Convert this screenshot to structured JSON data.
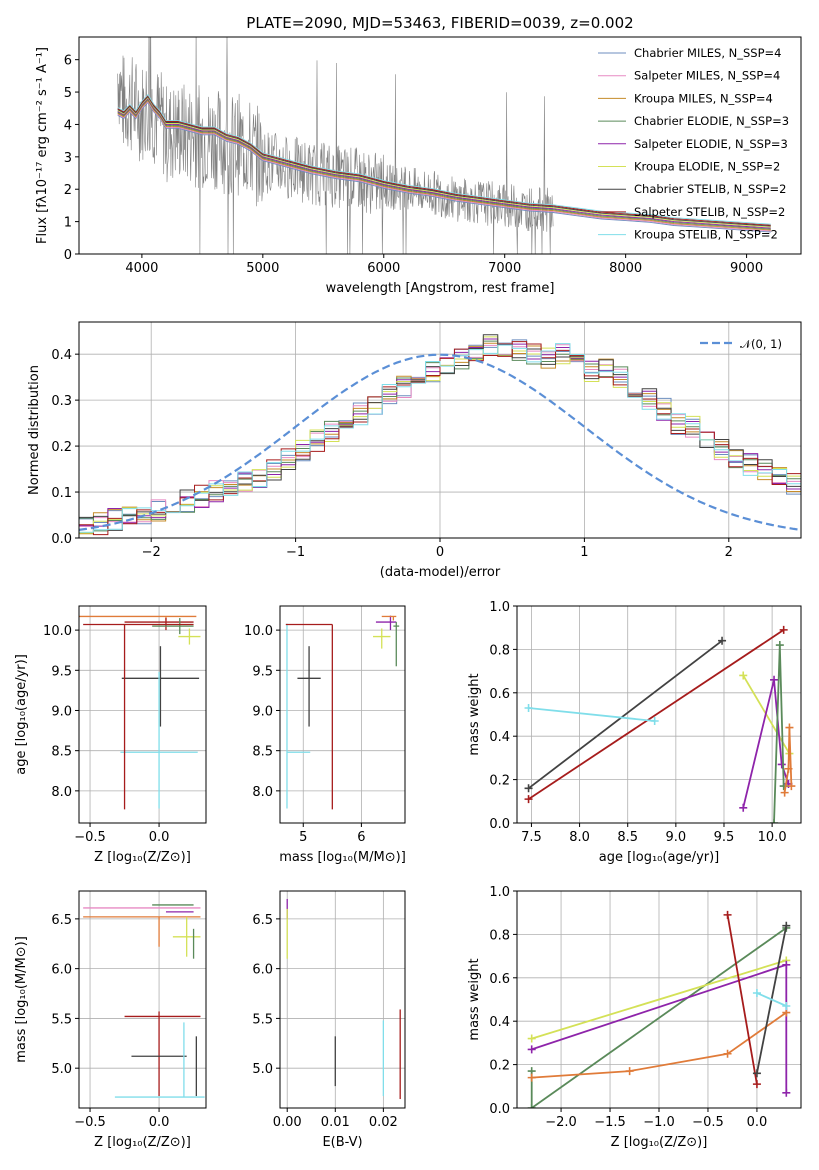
{
  "chart_data": [
    {
      "id": "spectrum",
      "type": "line",
      "title": "PLATE=2090, MJD=53463, FIBERID=0039, z=0.002",
      "xlabel": "wavelength [Angstrom, rest frame]",
      "ylabel": "Flux [fλ10⁻¹⁷ erg cm⁻² s⁻¹ A⁻¹]",
      "xlim": [
        3480,
        9450
      ],
      "ylim": [
        0,
        6.7
      ],
      "xticks": [
        4000,
        5000,
        6000,
        7000,
        8000,
        9000
      ],
      "yticks": [
        0,
        1,
        2,
        3,
        4,
        5,
        6
      ],
      "grid": false,
      "legend_position": "top-right",
      "data_envelope": {
        "x": [
          3800,
          3850,
          3900,
          3950,
          4000,
          4050,
          4100,
          4150,
          4200,
          4300,
          4400,
          4500,
          4600,
          4700,
          4800,
          4900,
          5000,
          5200,
          5400,
          5600,
          5800,
          6000,
          6200,
          6400,
          6600,
          6800,
          7000,
          7200,
          7400
        ],
        "y": [
          5.6,
          4.6,
          4.7,
          4.5,
          4.4,
          4.6,
          4.3,
          4.2,
          3.7,
          3.8,
          3.7,
          3.6,
          3.6,
          3.4,
          3.4,
          3.2,
          2.9,
          2.7,
          2.5,
          2.4,
          2.3,
          2.1,
          2.0,
          1.9,
          1.7,
          1.6,
          1.5,
          1.4,
          1.35
        ]
      },
      "series": [
        {
          "name": "Chabrier MILES, N_SSP=4",
          "color": "#6c8ebf"
        },
        {
          "name": "Salpeter MILES, N_SSP=4",
          "color": "#e78ac3"
        },
        {
          "name": "Kroupa MILES, N_SSP=4",
          "color": "#c58b2a"
        },
        {
          "name": "Chabrier ELODIE, N_SSP=3",
          "color": "#5a8a5a"
        },
        {
          "name": "Salpeter ELODIE, N_SSP=3",
          "color": "#8e24aa"
        },
        {
          "name": "Kroupa ELODIE, N_SSP=2",
          "color": "#d4e157"
        },
        {
          "name": "Chabrier STELIB, N_SSP=2",
          "color": "#424242"
        },
        {
          "name": "Salpeter STELIB, N_SSP=2",
          "color": "#a61c1c"
        },
        {
          "name": "Kroupa STELIB, N_SSP=2",
          "color": "#80deea"
        }
      ],
      "model_x": [
        3800,
        3850,
        3900,
        3950,
        4000,
        4050,
        4100,
        4150,
        4200,
        4300,
        4400,
        4500,
        4600,
        4700,
        4800,
        4900,
        5000,
        5200,
        5400,
        5600,
        5800,
        6000,
        6200,
        6400,
        6600,
        6800,
        7000,
        7200,
        7400,
        7600,
        7800,
        8000,
        8200,
        8400,
        8600,
        8800,
        9000,
        9200
      ],
      "model_y": [
        4.4,
        4.3,
        4.5,
        4.3,
        4.6,
        4.8,
        4.5,
        4.3,
        4.0,
        4.0,
        3.9,
        3.8,
        3.8,
        3.6,
        3.5,
        3.3,
        3.0,
        2.8,
        2.6,
        2.45,
        2.35,
        2.15,
        2.0,
        1.9,
        1.75,
        1.65,
        1.55,
        1.45,
        1.4,
        1.3,
        1.2,
        1.15,
        1.1,
        1.0,
        0.95,
        0.9,
        0.85,
        0.8
      ]
    },
    {
      "id": "residuals",
      "type": "histogram",
      "xlabel": "(data-model)/error",
      "ylabel": "Normed distribution",
      "xlim": [
        -2.5,
        2.5
      ],
      "ylim": [
        0,
        0.47
      ],
      "xticks": [
        -2,
        -1,
        0,
        1,
        2
      ],
      "yticks": [
        0.0,
        0.1,
        0.2,
        0.3,
        0.4
      ],
      "grid": true,
      "legend": "𝒩(0, 1)",
      "legend_position": "top-right",
      "reference_curve": "normal(0,1) pdf",
      "bin_width": 0.1,
      "bin_start": -2.5,
      "values": [
        0.03,
        0.03,
        0.04,
        0.05,
        0.05,
        0.06,
        0.07,
        0.08,
        0.09,
        0.1,
        0.11,
        0.12,
        0.13,
        0.15,
        0.17,
        0.19,
        0.21,
        0.23,
        0.25,
        0.27,
        0.29,
        0.31,
        0.33,
        0.35,
        0.36,
        0.38,
        0.39,
        0.4,
        0.42,
        0.41,
        0.41,
        0.4,
        0.39,
        0.4,
        0.38,
        0.36,
        0.37,
        0.35,
        0.33,
        0.3,
        0.28,
        0.25,
        0.24,
        0.22,
        0.19,
        0.17,
        0.16,
        0.15,
        0.13,
        0.12,
        0.1,
        0.09,
        0.08,
        0.07,
        0.06,
        0.06,
        0.05,
        0.04,
        0.04,
        0.03
      ]
    },
    {
      "id": "Z-age",
      "type": "errorbar",
      "xlabel": "Z [log₁₀(Z/Z⊙)]",
      "ylabel": "age  [log₁₀(age/yr)]",
      "xlim": [
        -0.58,
        0.34
      ],
      "ylim": [
        7.6,
        10.3
      ],
      "xticks": [
        -0.5,
        0.0,
        0.5
      ],
      "yticks": [
        8.0,
        8.5,
        9.0,
        9.5,
        10.0
      ],
      "grid": true,
      "points": [
        {
          "x": 0.05,
          "y": 10.17,
          "xerr": [
            0.63,
            0.22
          ],
          "yerr": [
            0.05,
            0.0
          ],
          "color": "#e07b39"
        },
        {
          "x": 0.05,
          "y": 10.1,
          "xerr": [
            0.3,
            0.2
          ],
          "yerr": [
            0.1,
            0.05
          ],
          "color": "#a61c1c"
        },
        {
          "x": 0.15,
          "y": 10.05,
          "xerr": [
            0.2,
            0.1
          ],
          "yerr": [
            0.1,
            0.1
          ],
          "color": "#5a8a5a"
        },
        {
          "x": 0.22,
          "y": 9.92,
          "xerr": [
            0.08,
            0.08
          ],
          "yerr": [
            0.1,
            0.1
          ],
          "color": "#d4e157"
        },
        {
          "x": 0.01,
          "y": 9.4,
          "xerr": [
            0.28,
            0.28
          ],
          "yerr": [
            0.6,
            0.4
          ],
          "color": "#424242"
        },
        {
          "x": 0.0,
          "y": 8.48,
          "xerr": [
            0.28,
            0.28
          ],
          "yerr": [
            0.7,
            1.0
          ],
          "color": "#80deea"
        },
        {
          "x": -0.25,
          "y": 10.07,
          "xerr": [
            0.3,
            0.5
          ],
          "yerr": [
            2.3,
            0.0
          ],
          "color": "#a61c1c"
        }
      ]
    },
    {
      "id": "mass-age",
      "type": "errorbar",
      "xlabel": "mass [log₁₀(M/M⊙)]",
      "ylabel": "",
      "xlim": [
        4.6,
        6.75
      ],
      "ylim": [
        7.6,
        10.3
      ],
      "xticks": [
        5,
        6
      ],
      "yticks": [
        8.0,
        8.5,
        9.0,
        9.5,
        10.0
      ],
      "grid": true,
      "points": [
        {
          "x": 5.1,
          "y": 9.4,
          "xerr": [
            0.2,
            0.2
          ],
          "yerr": [
            0.6,
            0.4
          ],
          "color": "#424242"
        },
        {
          "x": 4.72,
          "y": 8.48,
          "xerr": [
            0.0,
            0.4
          ],
          "yerr": [
            0.7,
            1.6
          ],
          "color": "#80deea"
        },
        {
          "x": 5.5,
          "y": 10.07,
          "xerr": [
            0.8,
            0.0
          ],
          "yerr": [
            2.3,
            0.0
          ],
          "color": "#a61c1c"
        },
        {
          "x": 6.5,
          "y": 10.1,
          "xerr": [
            0.25,
            0.1
          ],
          "yerr": [
            0.1,
            0.08
          ],
          "color": "#8e24aa"
        },
        {
          "x": 6.35,
          "y": 9.92,
          "xerr": [
            0.15,
            0.15
          ],
          "yerr": [
            0.15,
            0.1
          ],
          "color": "#d4e157"
        },
        {
          "x": 6.55,
          "y": 10.17,
          "xerr": [
            0.2,
            0.05
          ],
          "yerr": [
            0.05,
            0.0
          ],
          "color": "#e07b39"
        },
        {
          "x": 6.6,
          "y": 10.05,
          "xerr": [
            0.05,
            0.05
          ],
          "yerr": [
            0.5,
            0.05
          ],
          "color": "#5a8a5a"
        }
      ]
    },
    {
      "id": "age-weight",
      "type": "line",
      "xlabel": "age  [log₁₀(age/yr)]",
      "ylabel": "mass weight",
      "xlim": [
        7.35,
        10.3
      ],
      "ylim": [
        0,
        1.0
      ],
      "xticks": [
        7.5,
        8.0,
        8.5,
        9.0,
        9.5,
        10.0
      ],
      "yticks": [
        0.0,
        0.2,
        0.4,
        0.6,
        0.8,
        1.0
      ],
      "grid": true,
      "series": [
        {
          "color": "#424242",
          "x": [
            7.47,
            9.48
          ],
          "y": [
            0.16,
            0.84
          ]
        },
        {
          "color": "#a61c1c",
          "x": [
            7.47,
            10.12
          ],
          "y": [
            0.11,
            0.89
          ]
        },
        {
          "color": "#80deea",
          "x": [
            7.47,
            8.78
          ],
          "y": [
            0.53,
            0.47
          ]
        },
        {
          "color": "#d4e157",
          "x": [
            9.7,
            10.18
          ],
          "y": [
            0.68,
            0.32
          ]
        },
        {
          "color": "#8e24aa",
          "x": [
            9.7,
            10.02,
            10.1,
            10.17
          ],
          "y": [
            0.07,
            0.66,
            0.27,
            0.18
          ]
        },
        {
          "color": "#5a8a5a",
          "x": [
            10.02,
            10.08,
            10.12
          ],
          "y": [
            0.0,
            0.82,
            0.17
          ]
        },
        {
          "color": "#e07b39",
          "x": [
            10.13,
            10.17,
            10.18,
            10.2
          ],
          "y": [
            0.14,
            0.25,
            0.44,
            0.17
          ]
        }
      ]
    },
    {
      "id": "Z-mass",
      "type": "errorbar",
      "xlabel": "Z [log₁₀(Z/Z⊙)]",
      "ylabel": "mass [log₁₀(M/M⊙)]",
      "xlim": [
        -0.58,
        0.34
      ],
      "ylim": [
        4.6,
        6.78
      ],
      "xticks": [
        -0.5,
        0.0,
        0.5
      ],
      "yticks": [
        5.0,
        5.5,
        6.0,
        6.5
      ],
      "grid": true,
      "points": [
        {
          "x": 0.25,
          "y": 6.64,
          "xerr": [
            0.3,
            0.0
          ],
          "yerr": [
            0.0,
            0.0
          ],
          "color": "#5a8a5a"
        },
        {
          "x": 0.05,
          "y": 6.61,
          "xerr": [
            0.6,
            0.25
          ],
          "yerr": [
            0.0,
            0.0
          ],
          "color": "#e78ac3"
        },
        {
          "x": 0.05,
          "y": 6.57,
          "xerr": [
            0.0,
            0.2
          ],
          "yerr": [
            0.0,
            0.0
          ],
          "color": "#8e24aa"
        },
        {
          "x": 0.0,
          "y": 6.52,
          "xerr": [
            0.55,
            0.3
          ],
          "yerr": [
            0.3,
            0.0
          ],
          "color": "#e07b39"
        },
        {
          "x": 0.2,
          "y": 6.32,
          "xerr": [
            0.1,
            0.1
          ],
          "yerr": [
            0.2,
            0.2
          ],
          "color": "#d4e157"
        },
        {
          "x": 0.25,
          "y": 6.4,
          "xerr": [
            0.0,
            0.0
          ],
          "yerr": [
            0.3,
            0.0
          ],
          "color": "#5a8a5a"
        },
        {
          "x": 0.0,
          "y": 5.52,
          "xerr": [
            0.25,
            0.3
          ],
          "yerr": [
            0.8,
            0.05
          ],
          "color": "#a61c1c"
        },
        {
          "x": 0.0,
          "y": 5.12,
          "xerr": [
            0.2,
            0.2
          ],
          "yerr": [
            0.0,
            0.0
          ],
          "color": "#424242"
        },
        {
          "x": 0.27,
          "y": 5.12,
          "xerr": [
            0.0,
            0.0
          ],
          "yerr": [
            0.4,
            0.2
          ],
          "color": "#424242"
        },
        {
          "x": 0.18,
          "y": 4.71,
          "xerr": [
            0.5,
            0.15
          ],
          "yerr": [
            0.0,
            0.75
          ],
          "color": "#80deea"
        }
      ]
    },
    {
      "id": "EBV-mass",
      "type": "errorbar",
      "xlabel": "E(B-V)",
      "ylabel": "",
      "xlim": [
        -0.0015,
        0.0245
      ],
      "ylim": [
        4.6,
        6.78
      ],
      "xticks": [
        0.0,
        0.01,
        0.02
      ],
      "yticks": [
        5.0,
        5.5,
        6.0,
        6.5
      ],
      "grid": true,
      "points": [
        {
          "x": 0.0,
          "y": 6.6,
          "xerr": [
            0,
            0
          ],
          "yerr": [
            0.1,
            0.1
          ],
          "color": "#8e24aa"
        },
        {
          "x": 0.0,
          "y": 6.35,
          "xerr": [
            0,
            0
          ],
          "yerr": [
            0.25,
            0.25
          ],
          "color": "#d4e157"
        },
        {
          "x": 0.01,
          "y": 5.07,
          "xerr": [
            0,
            0
          ],
          "yerr": [
            0.25,
            0.25
          ],
          "color": "#424242"
        },
        {
          "x": 0.02,
          "y": 5.1,
          "xerr": [
            0,
            0
          ],
          "yerr": [
            0.38,
            0.38
          ],
          "color": "#80deea"
        },
        {
          "x": 0.0235,
          "y": 5.14,
          "xerr": [
            0,
            0
          ],
          "yerr": [
            0.45,
            0.45
          ],
          "color": "#a61c1c"
        }
      ]
    },
    {
      "id": "Z-weight",
      "type": "line",
      "xlabel": "Z [log₁₀(Z/Z⊙)]",
      "ylabel": "mass weight",
      "xlim": [
        -2.45,
        0.45
      ],
      "ylim": [
        0,
        1.0
      ],
      "xticks": [
        -2.0,
        -1.5,
        -1.0,
        -0.5,
        0.0
      ],
      "yticks": [
        0.0,
        0.2,
        0.4,
        0.6,
        0.8,
        1.0
      ],
      "grid": true,
      "series": [
        {
          "color": "#5a8a5a",
          "x": [
            -2.3,
            -2.3,
            0.3
          ],
          "y": [
            0.17,
            0.0,
            0.83
          ]
        },
        {
          "color": "#d4e157",
          "x": [
            -2.3,
            0.3
          ],
          "y": [
            0.32,
            0.68
          ]
        },
        {
          "color": "#8e24aa",
          "x": [
            -2.3,
            0.3,
            0.3
          ],
          "y": [
            0.27,
            0.66,
            0.07
          ]
        },
        {
          "color": "#e07b39",
          "x": [
            -2.3,
            -1.3,
            -0.3,
            0.3
          ],
          "y": [
            0.14,
            0.17,
            0.25,
            0.44
          ]
        },
        {
          "color": "#a61c1c",
          "x": [
            -0.3,
            0.0
          ],
          "y": [
            0.89,
            0.11
          ]
        },
        {
          "color": "#424242",
          "x": [
            0.0,
            0.3
          ],
          "y": [
            0.16,
            0.84
          ]
        },
        {
          "color": "#80deea",
          "x": [
            0.0,
            0.3
          ],
          "y": [
            0.53,
            0.47
          ]
        }
      ]
    }
  ]
}
